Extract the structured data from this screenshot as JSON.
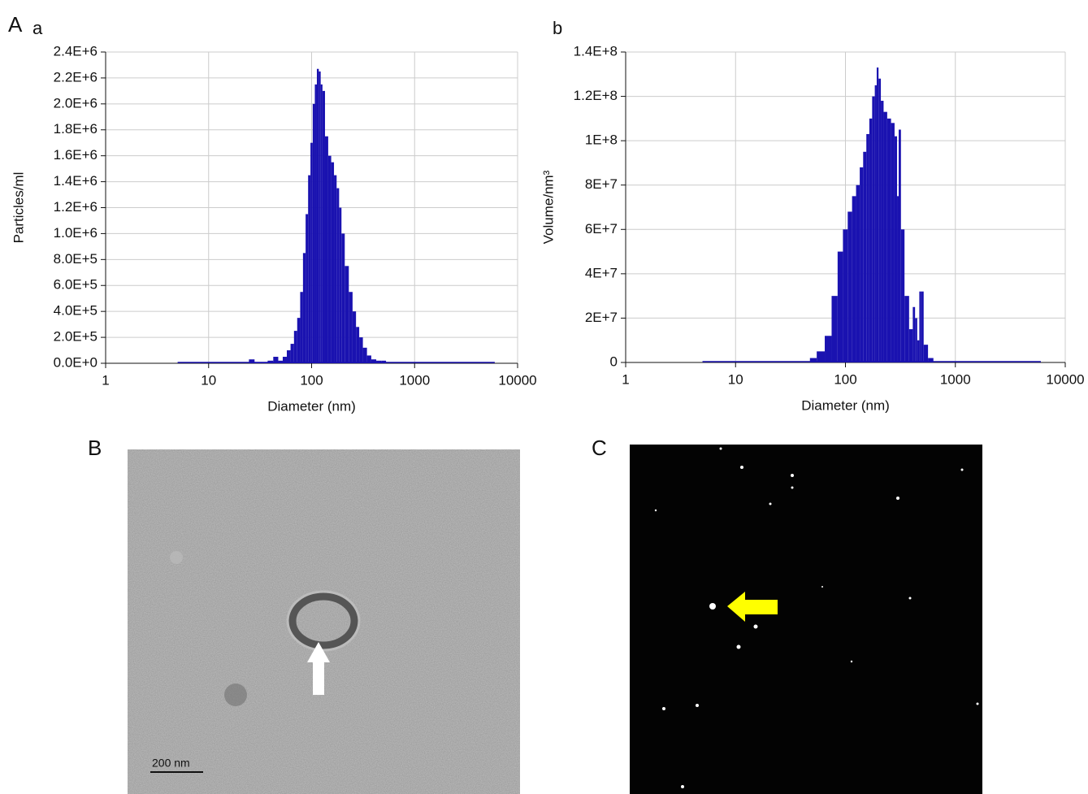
{
  "panels": {
    "A": "A",
    "a": "a",
    "b": "b",
    "B": "B",
    "C": "C"
  },
  "scale_bar": "200 nm",
  "chart_data": [
    {
      "type": "bar",
      "xlabel": "Diameter (nm)",
      "ylabel": "Particles/ml",
      "color": "#1a12b0",
      "xlog": true,
      "grid": true,
      "x": [
        5,
        26,
        30,
        35,
        40,
        45,
        50,
        55,
        60,
        65,
        70,
        75,
        80,
        85,
        90,
        95,
        100,
        105,
        110,
        115,
        120,
        125,
        130,
        140,
        150,
        160,
        170,
        180,
        190,
        200,
        220,
        240,
        260,
        280,
        300,
        330,
        360,
        400,
        450,
        500,
        6000
      ],
      "values": [
        0,
        30000,
        10000,
        10000,
        20000,
        50000,
        20000,
        50000,
        100000,
        150000,
        250000,
        350000,
        550000,
        850000,
        1150000,
        1450000,
        1700000,
        2000000,
        2150000,
        2270000,
        2250000,
        2150000,
        2100000,
        1750000,
        1600000,
        1550000,
        1450000,
        1350000,
        1200000,
        1000000,
        750000,
        550000,
        400000,
        280000,
        200000,
        120000,
        60000,
        30000,
        20000,
        20000,
        0
      ],
      "xlim": [
        1,
        10000
      ],
      "xticks": [
        1,
        10,
        100,
        1000,
        10000
      ],
      "ylim": [
        0,
        2400000
      ],
      "yticks": [
        {
          "value": 0,
          "label": "0.0E+0"
        },
        {
          "value": 200000,
          "label": "2.0E+5"
        },
        {
          "value": 400000,
          "label": "4.0E+5"
        },
        {
          "value": 600000,
          "label": "6.0E+5"
        },
        {
          "value": 800000,
          "label": "8.0E+5"
        },
        {
          "value": 1000000,
          "label": "1.0E+6"
        },
        {
          "value": 1200000,
          "label": "1.2E+6"
        },
        {
          "value": 1400000,
          "label": "1.4E+6"
        },
        {
          "value": 1600000,
          "label": "1.6E+6"
        },
        {
          "value": 1800000,
          "label": "1.8E+6"
        },
        {
          "value": 2000000,
          "label": "2.0E+6"
        },
        {
          "value": 2200000,
          "label": "2.2E+6"
        },
        {
          "value": 2400000,
          "label": "2.4E+6"
        }
      ]
    },
    {
      "type": "bar",
      "xlabel": "Diameter (nm)",
      "ylabel": "Volume/nm³",
      "color": "#1a12b0",
      "xlog": true,
      "grid": true,
      "x": [
        5,
        50,
        60,
        70,
        80,
        90,
        100,
        110,
        120,
        130,
        140,
        150,
        160,
        170,
        180,
        190,
        195,
        205,
        215,
        230,
        250,
        270,
        290,
        300,
        310,
        330,
        360,
        400,
        420,
        440,
        460,
        480,
        500,
        530,
        600,
        6000
      ],
      "values": [
        0,
        2000000,
        5000000,
        12000000,
        30000000,
        50000000,
        60000000,
        68000000,
        75000000,
        80000000,
        88000000,
        95000000,
        103000000,
        110000000,
        120000000,
        125000000,
        133000000,
        128000000,
        118000000,
        113000000,
        110000000,
        108000000,
        102000000,
        75000000,
        105000000,
        60000000,
        30000000,
        15000000,
        25000000,
        20000000,
        10000000,
        32000000,
        32000000,
        8000000,
        2000000,
        0
      ],
      "xlim": [
        1,
        10000
      ],
      "xticks": [
        1,
        10,
        100,
        1000,
        10000
      ],
      "ylim": [
        0,
        140000000
      ],
      "yticks": [
        0,
        {
          "value": 20000000,
          "label": "2E+7"
        },
        {
          "value": 40000000,
          "label": "4E+7"
        },
        {
          "value": 60000000,
          "label": "6E+7"
        },
        {
          "value": 80000000,
          "label": "8E+7"
        },
        {
          "value": 100000000,
          "label": "1E+8"
        },
        {
          "value": 120000000,
          "label": "1.2E+8"
        },
        {
          "value": 140000000,
          "label": "1.4E+8"
        }
      ]
    }
  ]
}
